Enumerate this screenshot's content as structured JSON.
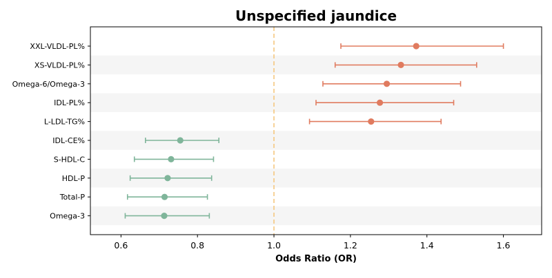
{
  "chart_data": {
    "type": "forest",
    "title": "Unspecified jaundice",
    "xlabel": "Odds Ratio (OR)",
    "ylabel": "",
    "xlim": [
      0.52,
      1.7
    ],
    "xticks": [
      "0.6",
      "0.8",
      "1.0",
      "1.2",
      "1.4",
      "1.6"
    ],
    "reference_line": 1.0,
    "grid": false,
    "rows": [
      {
        "label": "XXL-VLDL-PL%",
        "or": 1.372,
        "lo": 1.175,
        "hi": 1.6,
        "color": "#e07b5f"
      },
      {
        "label": "XS-VLDL-PL%",
        "or": 1.332,
        "lo": 1.16,
        "hi": 1.53,
        "color": "#e07b5f"
      },
      {
        "label": "Omega-6/Omega-3",
        "or": 1.295,
        "lo": 1.128,
        "hi": 1.488,
        "color": "#e07b5f"
      },
      {
        "label": "IDL-PL%",
        "or": 1.277,
        "lo": 1.11,
        "hi": 1.47,
        "color": "#e07b5f"
      },
      {
        "label": "L-LDL-TG%",
        "or": 1.254,
        "lo": 1.093,
        "hi": 1.437,
        "color": "#e07b5f"
      },
      {
        "label": "IDL-CE%",
        "or": 0.755,
        "lo": 0.664,
        "hi": 0.856,
        "color": "#7fb59a"
      },
      {
        "label": "S-HDL-C",
        "or": 0.731,
        "lo": 0.635,
        "hi": 0.842,
        "color": "#7fb59a"
      },
      {
        "label": "HDL-P",
        "or": 0.722,
        "lo": 0.624,
        "hi": 0.837,
        "color": "#7fb59a"
      },
      {
        "label": "Total-P",
        "or": 0.714,
        "lo": 0.617,
        "hi": 0.826,
        "color": "#7fb59a"
      },
      {
        "label": "Omega-3",
        "or": 0.713,
        "lo": 0.611,
        "hi": 0.831,
        "color": "#7fb59a"
      }
    ],
    "colors": {
      "risk": "#e07b5f",
      "protective": "#7fb59a",
      "reference": "#f5c77e",
      "band": "#f5f5f5"
    }
  }
}
